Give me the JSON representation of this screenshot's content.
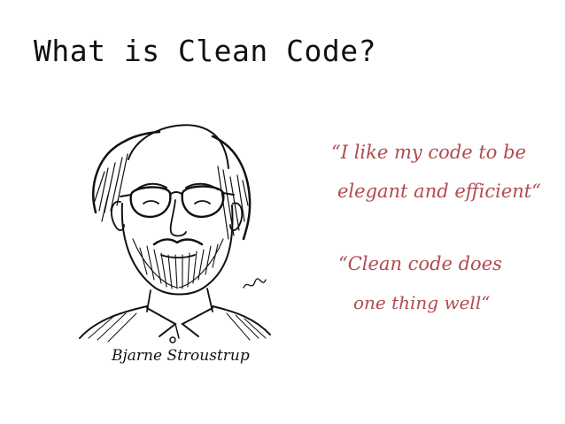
{
  "slide": {
    "title": "What is Clean Code?",
    "portrait_caption": "Bjarne Stroustrup",
    "quotes": [
      {
        "line1": "“I like my code to be",
        "line2": "elegant and efficient“"
      },
      {
        "line1": "“Clean code does",
        "line2": "one thing well“"
      }
    ],
    "quote_color": "#b04a4f"
  }
}
